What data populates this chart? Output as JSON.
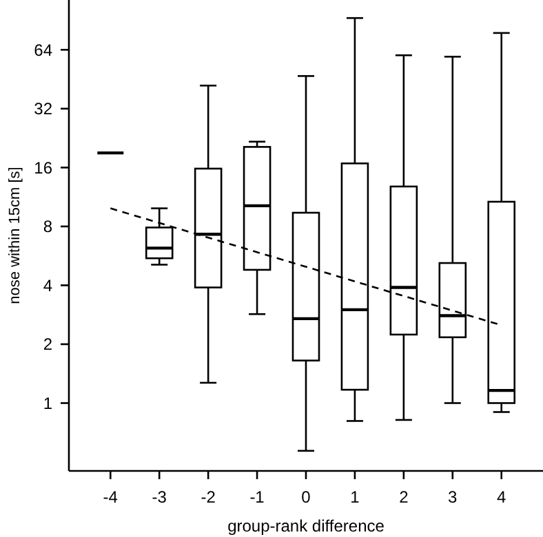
{
  "chart_data": {
    "type": "box",
    "xlabel": "group-rank difference",
    "ylabel": "nose within 15cm [s]",
    "categories": [
      "-4",
      "-3",
      "-2",
      "-1",
      "0",
      "1",
      "2",
      "3",
      "4"
    ],
    "log": "y",
    "ylim": [
      0.45,
      115
    ],
    "yticks": [
      1,
      2,
      4,
      8,
      16,
      32,
      64
    ],
    "grid": false,
    "boxes": [
      {
        "low": 19,
        "q1": 19,
        "median": 19,
        "q3": 19,
        "high": 19
      },
      {
        "low": 5.1,
        "q1": 5.5,
        "median": 6.2,
        "q3": 7.9,
        "high": 9.9
      },
      {
        "low": 1.27,
        "q1": 3.9,
        "median": 7.3,
        "q3": 15.8,
        "high": 42
      },
      {
        "low": 2.85,
        "q1": 4.8,
        "median": 10.2,
        "q3": 20.4,
        "high": 21.7
      },
      {
        "low": 0.57,
        "q1": 1.65,
        "median": 2.7,
        "q3": 9.4,
        "high": 47
      },
      {
        "low": 0.81,
        "q1": 1.17,
        "median": 3.0,
        "q3": 16.8,
        "high": 93
      },
      {
        "low": 0.82,
        "q1": 2.24,
        "median": 3.9,
        "q3": 12.8,
        "high": 60
      },
      {
        "low": 1.0,
        "q1": 2.17,
        "median": 2.8,
        "q3": 5.2,
        "high": 59
      },
      {
        "low": 0.9,
        "q1": 1.0,
        "median": 1.16,
        "q3": 10.7,
        "high": 78
      }
    ],
    "series": [
      {
        "type": "line",
        "x": [
          "-4",
          "4"
        ],
        "values": [
          9.9,
          2.5
        ],
        "color": "#000000",
        "line_style": "dashed"
      }
    ]
  }
}
